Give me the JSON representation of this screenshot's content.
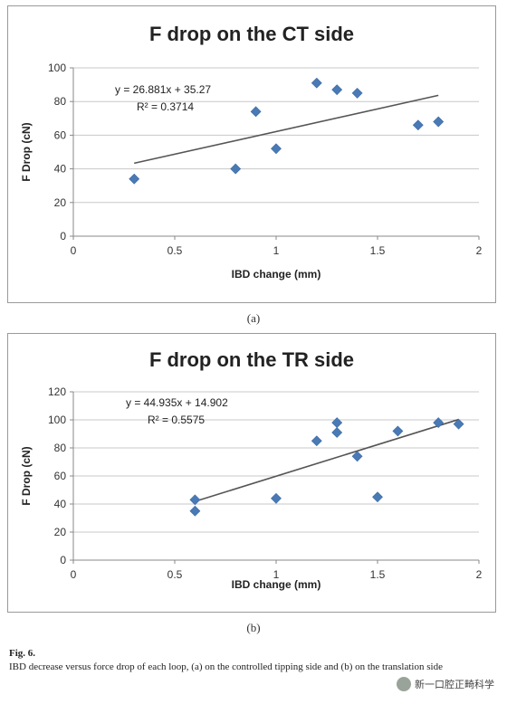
{
  "chart_data": [
    {
      "type": "scatter",
      "title": "F drop on the CT side",
      "xlabel": "IBD change (mm)",
      "ylabel": "F Drop (cN)",
      "xlim": [
        0,
        2
      ],
      "ylim": [
        0,
        100
      ],
      "xticks": [
        0,
        0.5,
        1,
        1.5,
        2
      ],
      "yticks": [
        0,
        20,
        40,
        60,
        80,
        100
      ],
      "xtick_labels": [
        "0",
        "0.5",
        "1",
        "1.5",
        "2"
      ],
      "ytick_labels": [
        "0",
        "20",
        "40",
        "60",
        "80",
        "100"
      ],
      "grid": "horizontal",
      "legend": "none",
      "points": [
        {
          "x": 0.3,
          "y": 34
        },
        {
          "x": 0.8,
          "y": 40
        },
        {
          "x": 0.9,
          "y": 74
        },
        {
          "x": 1.0,
          "y": 52
        },
        {
          "x": 1.2,
          "y": 91
        },
        {
          "x": 1.3,
          "y": 87
        },
        {
          "x": 1.4,
          "y": 85
        },
        {
          "x": 1.7,
          "y": 66
        },
        {
          "x": 1.8,
          "y": 68
        }
      ],
      "trendline": {
        "slope": 26.881,
        "intercept": 35.27,
        "x_range": [
          0.3,
          1.8
        ]
      },
      "equation": "y = 26.881x + 35.27",
      "r_squared": "R² = 0.3714",
      "marker_color": "#4a7ab5",
      "line_color": "#555555",
      "panel_label": "(a)"
    },
    {
      "type": "scatter",
      "title": "F drop on the TR side",
      "xlabel": "IBD change (mm)",
      "ylabel": "F Drop (cN)",
      "xlim": [
        0,
        2
      ],
      "ylim": [
        0,
        120
      ],
      "xticks": [
        0,
        0.5,
        1,
        1.5,
        2
      ],
      "yticks": [
        0,
        20,
        40,
        60,
        80,
        100,
        120
      ],
      "xtick_labels": [
        "0",
        "0.5",
        "1",
        "1.5",
        "2"
      ],
      "ytick_labels": [
        "0",
        "20",
        "40",
        "60",
        "80",
        "100",
        "120"
      ],
      "grid": "horizontal",
      "legend": "none",
      "points": [
        {
          "x": 0.6,
          "y": 43
        },
        {
          "x": 0.6,
          "y": 35
        },
        {
          "x": 1.0,
          "y": 44
        },
        {
          "x": 1.2,
          "y": 85
        },
        {
          "x": 1.3,
          "y": 98
        },
        {
          "x": 1.3,
          "y": 91
        },
        {
          "x": 1.4,
          "y": 74
        },
        {
          "x": 1.5,
          "y": 45
        },
        {
          "x": 1.6,
          "y": 92
        },
        {
          "x": 1.8,
          "y": 98
        },
        {
          "x": 1.9,
          "y": 97
        }
      ],
      "trendline": {
        "slope": 44.935,
        "intercept": 14.902,
        "x_range": [
          0.6,
          1.9
        ]
      },
      "equation": "y = 44.935x + 14.902",
      "r_squared": "R² = 0.5575",
      "marker_color": "#4a7ab5",
      "line_color": "#555555",
      "panel_label": "(b)"
    }
  ],
  "caption": {
    "figure_label": "Fig. 6.",
    "text": "IBD decrease versus force drop of each loop, (a) on the controlled tipping side and (b) on the translation side"
  },
  "watermark": "新一口腔正畸科学"
}
